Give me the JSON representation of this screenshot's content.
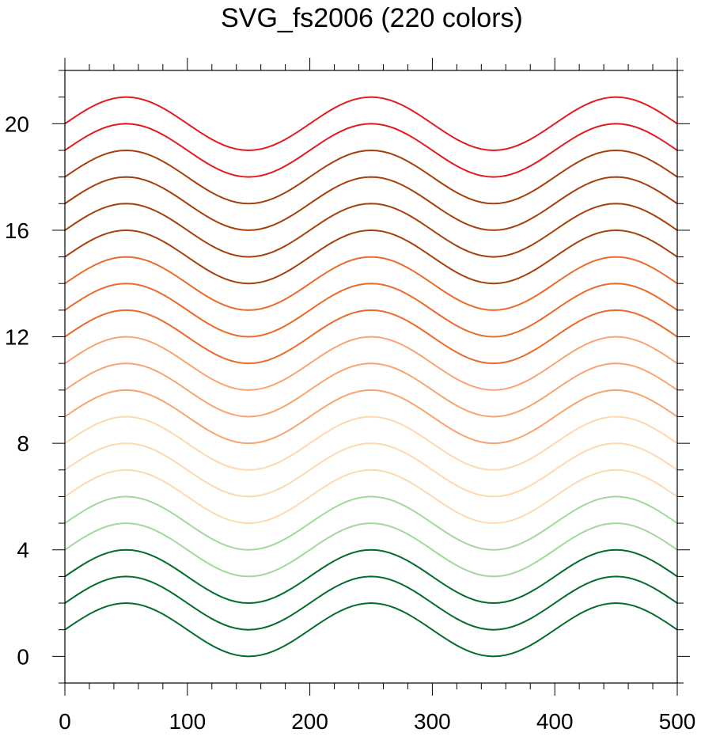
{
  "chart_data": {
    "type": "line",
    "title": "SVG_fs2006 (220 colors)",
    "xlabel": "",
    "ylabel": "",
    "xlim": [
      0,
      500
    ],
    "ylim": [
      -1,
      22
    ],
    "x_ticks": [
      0,
      100,
      200,
      300,
      400,
      500
    ],
    "x_tick_labels": [
      "0",
      "100",
      "200",
      "300",
      "400",
      "500"
    ],
    "y_ticks": [
      0,
      4,
      8,
      12,
      16,
      20
    ],
    "y_tick_labels": [
      "0",
      "4",
      "8",
      "12",
      "16",
      "20"
    ],
    "x_minor_step": 20,
    "y_minor_step": 1,
    "grid": false,
    "legend": "none",
    "curve": {
      "form": "offset + 1 + sin(2*pi*x/200)",
      "x_start": 0,
      "x_end": 500,
      "x_step": 5
    },
    "series": [
      {
        "offset": 0,
        "color": "#006d2c"
      },
      {
        "offset": 1,
        "color": "#006d2c"
      },
      {
        "offset": 2,
        "color": "#006d2c"
      },
      {
        "offset": 3,
        "color": "#a1d99b"
      },
      {
        "offset": 4,
        "color": "#a1d99b"
      },
      {
        "offset": 5,
        "color": "#fdd9b0"
      },
      {
        "offset": 6,
        "color": "#fdd9b0"
      },
      {
        "offset": 7,
        "color": "#fdd9b0"
      },
      {
        "offset": 8,
        "color": "#f9a470"
      },
      {
        "offset": 9,
        "color": "#f9a470"
      },
      {
        "offset": 10,
        "color": "#f9a470"
      },
      {
        "offset": 11,
        "color": "#ec6a2a"
      },
      {
        "offset": 12,
        "color": "#ec6a2a"
      },
      {
        "offset": 13,
        "color": "#ec6a2a"
      },
      {
        "offset": 14,
        "color": "#a63f0b"
      },
      {
        "offset": 15,
        "color": "#a63f0b"
      },
      {
        "offset": 16,
        "color": "#a63f0b"
      },
      {
        "offset": 17,
        "color": "#a63f0b"
      },
      {
        "offset": 18,
        "color": "#e31a1c"
      },
      {
        "offset": 19,
        "color": "#e31a1c"
      }
    ]
  }
}
